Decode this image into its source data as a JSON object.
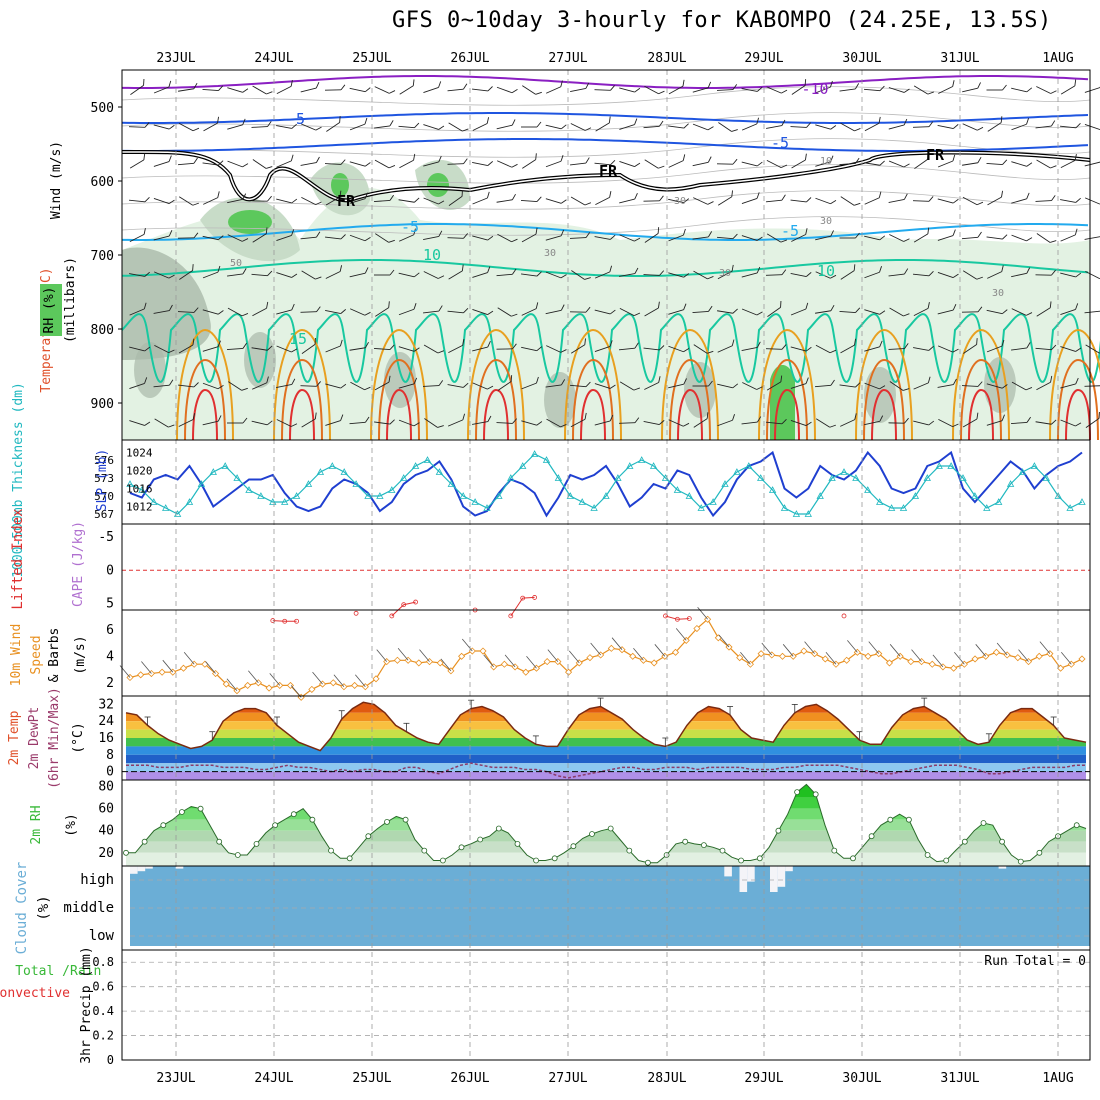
{
  "title": "GFS 0~10day 3-hourly for KABOMPO (24.25E, 13.5S)",
  "date_labels": [
    "23JUL",
    "24JUL",
    "25JUL",
    "26JUL",
    "27JUL",
    "28JUL",
    "29JUL",
    "30JUL",
    "31JUL",
    "1AUG"
  ],
  "colors": {
    "rh_green": "#5cc85c",
    "temp_purple": "#8a1fc2",
    "temp_blue": "#1f55e0",
    "temp_cyan": "#22aaee",
    "temp_teal": "#18c8a0",
    "temp_orange": "#e8a020",
    "temp_red": "#e03030",
    "slp": "#1f3fd0",
    "thickness": "#20b8c0",
    "lifted": "#e03030",
    "wind_speed": "#e89020",
    "cloud": "#6baed6",
    "rh2m": "#38b838"
  },
  "chart_data": [
    {
      "id": "upper",
      "type": "heatmap",
      "ylabels": {
        "wind": "Wind (m/s)",
        "temp": "Temperature (°C)",
        "rh": "RH (%)",
        "axis": "(millibars)"
      },
      "yticks": [
        500,
        600,
        700,
        800,
        900
      ],
      "ylim": [
        450,
        950
      ],
      "contour_labels": [
        {
          "text": "-10",
          "c": "purple"
        },
        {
          "text": "-5",
          "c": "blue"
        },
        {
          "text": "-5",
          "c": "blue"
        },
        {
          "text": "FR",
          "c": "black"
        },
        {
          "text": "FR",
          "c": "black"
        },
        {
          "text": "FR",
          "c": "black"
        },
        {
          "text": "-5",
          "c": "cyan"
        },
        {
          "text": "-5",
          "c": "cyan"
        },
        {
          "text": "10",
          "c": "teal"
        },
        {
          "text": "10",
          "c": "teal"
        },
        {
          "text": "15",
          "c": "teal"
        },
        {
          "text": "50",
          "c": "gray"
        },
        {
          "text": "30",
          "c": "gray"
        },
        {
          "text": "30",
          "c": "gray"
        },
        {
          "text": "30",
          "c": "gray"
        },
        {
          "text": "30",
          "c": "gray"
        },
        {
          "text": "10",
          "c": "gray"
        },
        {
          "text": "30",
          "c": "gray"
        }
      ]
    },
    {
      "id": "slp_thickness",
      "type": "line",
      "ylabel_left": "1000-500mb Thickness (dm)",
      "ylabel_right": "SLP (mb)",
      "left_ticks": [
        "576",
        "573",
        "570",
        "567"
      ],
      "right_ticks": [
        "1024",
        "1020",
        "1016",
        "1012"
      ],
      "series": [
        {
          "name": "SLP",
          "values": [
            1015,
            1014,
            1018,
            1019,
            1018,
            1021,
            1017,
            1012,
            1014,
            1016,
            1018,
            1018,
            1019,
            1015,
            1012,
            1011,
            1012,
            1016,
            1018,
            1017,
            1015,
            1011,
            1013,
            1017,
            1019,
            1020,
            1022,
            1018,
            1012,
            1010,
            1011,
            1015,
            1018,
            1017,
            1015,
            1010,
            1014,
            1019,
            1018,
            1019,
            1021,
            1017,
            1012,
            1014,
            1017,
            1016,
            1020,
            1019,
            1014,
            1010,
            1013,
            1018,
            1021,
            1022,
            1024,
            1016,
            1014,
            1016,
            1021,
            1019,
            1018,
            1020,
            1024,
            1021,
            1016,
            1015,
            1016,
            1021,
            1022,
            1024,
            1016,
            1013,
            1016,
            1019,
            1022,
            1020,
            1016,
            1019,
            1021,
            1022,
            1024
          ]
        },
        {
          "name": "Thickness",
          "values": [
            572,
            571,
            569,
            568,
            567,
            569,
            572,
            574,
            575,
            573,
            571,
            570,
            569,
            569,
            570,
            572,
            574,
            575,
            574,
            572,
            570,
            570,
            571,
            573,
            575,
            576,
            574,
            572,
            570,
            569,
            568,
            570,
            573,
            575,
            577,
            576,
            573,
            570,
            569,
            568,
            570,
            573,
            575,
            576,
            575,
            573,
            571,
            570,
            568,
            569,
            572,
            574,
            575,
            573,
            571,
            568,
            567,
            567,
            570,
            573,
            574,
            573,
            571,
            569,
            568,
            568,
            570,
            573,
            575,
            575,
            573,
            570,
            568,
            569,
            572,
            574,
            575,
            573,
            570,
            568,
            569
          ]
        }
      ]
    },
    {
      "id": "cape_li",
      "type": "line",
      "ylabel_left": "Lifted Index",
      "ylabel_right": "CAPE (J/kg)",
      "yticks": [
        "-5",
        "0",
        "5"
      ],
      "ylim": [
        -7,
        6
      ],
      "series": [
        {
          "name": "Lifted Index",
          "values": [
            null,
            null,
            null,
            null,
            null,
            null,
            null,
            null,
            null,
            null,
            null,
            null,
            7.6,
            7.7,
            7.7,
            null,
            null,
            null,
            null,
            6.5,
            null,
            null,
            6.9,
            5.2,
            4.8,
            null,
            null,
            null,
            null,
            6.0,
            null,
            null,
            6.9,
            4.2,
            4.1,
            null,
            null,
            null,
            null,
            null,
            null,
            null,
            null,
            null,
            null,
            6.9,
            7.4,
            7.3,
            null,
            null,
            null,
            null,
            null,
            null,
            null,
            null,
            null,
            null,
            null,
            null,
            6.9,
            null,
            null,
            null,
            null,
            null,
            null,
            null,
            null,
            null,
            null,
            null,
            null,
            null,
            null,
            null,
            null,
            null,
            null,
            null,
            null
          ]
        }
      ]
    },
    {
      "id": "wind10m",
      "type": "line",
      "ylabel": "10m Wind Speed & Barbs (m/s)",
      "yticks": [
        "6",
        "4",
        "2"
      ],
      "ylim": [
        1,
        7.5
      ],
      "series": [
        {
          "name": "10m Wind Speed",
          "values": [
            2.4,
            2.6,
            2.7,
            2.8,
            2.8,
            3.1,
            3.4,
            3.4,
            2.7,
            1.9,
            1.4,
            1.8,
            2.0,
            1.6,
            1.8,
            1.8,
            0.9,
            1.5,
            1.9,
            2.0,
            1.7,
            1.8,
            1.7,
            2.3,
            3.6,
            3.7,
            3.7,
            3.5,
            3.6,
            3.5,
            2.9,
            4.0,
            4.4,
            4.4,
            3.2,
            3.4,
            3.2,
            2.8,
            3.1,
            3.6,
            3.6,
            2.8,
            3.5,
            3.9,
            4.1,
            4.6,
            4.5,
            4.0,
            3.7,
            3.5,
            4.0,
            4.3,
            5.2,
            6.1,
            6.8,
            5.4,
            4.7,
            3.9,
            3.4,
            4.2,
            4.1,
            4.0,
            4.0,
            4.4,
            4.2,
            3.8,
            3.4,
            3.7,
            4.3,
            4.0,
            4.2,
            3.5,
            4.0,
            3.6,
            3.6,
            3.4,
            3.2,
            3.1,
            3.4,
            3.8,
            4.0,
            4.3,
            4.1,
            3.9,
            3.6,
            4.0,
            4.2,
            3.1,
            3.4,
            3.8
          ]
        }
      ]
    },
    {
      "id": "temp2m",
      "type": "area",
      "ylabel": "2m Temp 2m DewPt (6hr Min/Max) (°C)",
      "yticks": [
        "32",
        "24",
        "16",
        "8",
        "0"
      ],
      "ylim": [
        -4,
        36
      ],
      "series": [
        {
          "name": "2m Temp",
          "values": [
            28,
            27,
            22,
            18,
            15,
            13,
            11,
            12,
            15,
            24,
            28,
            30,
            30,
            28,
            22,
            18,
            14,
            12,
            10,
            16,
            25,
            30,
            33,
            32,
            28,
            22,
            19,
            16,
            14,
            13,
            20,
            27,
            30,
            31,
            29,
            26,
            20,
            16,
            13,
            12,
            12,
            20,
            27,
            30,
            31,
            28,
            25,
            20,
            16,
            13,
            12,
            14,
            22,
            28,
            31,
            30,
            27,
            20,
            16,
            15,
            14,
            22,
            28,
            31,
            32,
            29,
            25,
            20,
            15,
            13,
            13,
            21,
            27,
            30,
            31,
            28,
            25,
            20,
            15,
            13,
            14,
            22,
            28,
            30,
            30,
            26,
            22,
            16,
            15,
            14
          ]
        },
        {
          "name": "2m DewPt",
          "values": [
            3,
            3,
            3,
            2,
            2,
            2,
            3,
            3,
            3,
            2,
            2,
            2,
            1,
            1,
            2,
            3,
            2,
            2,
            1,
            0,
            1,
            0,
            1,
            1,
            0,
            0,
            2,
            2,
            0,
            -1,
            1,
            3,
            4,
            3,
            2,
            2,
            2,
            1,
            1,
            0,
            -2,
            -3,
            -2,
            -1,
            0,
            1,
            2,
            2,
            1,
            1,
            2,
            2,
            2,
            1,
            2,
            2,
            2,
            2,
            1,
            1,
            1,
            2,
            2,
            3,
            3,
            3,
            3,
            2,
            1,
            0,
            -1,
            -1,
            0,
            1,
            2,
            3,
            3,
            3,
            2,
            1,
            -1,
            -1,
            0,
            1,
            2,
            2,
            2,
            2,
            3,
            3
          ]
        }
      ]
    },
    {
      "id": "rh2m",
      "type": "area",
      "ylabel": "2m RH (%)",
      "yticks": [
        "80",
        "60",
        "40",
        "20"
      ],
      "ylim": [
        8,
        86
      ],
      "series": [
        {
          "name": "2m RH",
          "values": [
            20,
            20,
            30,
            40,
            45,
            50,
            57,
            62,
            60,
            45,
            30,
            20,
            18,
            18,
            28,
            38,
            45,
            50,
            55,
            60,
            50,
            35,
            22,
            15,
            15,
            25,
            35,
            42,
            48,
            53,
            50,
            32,
            22,
            13,
            13,
            18,
            25,
            28,
            32,
            35,
            42,
            38,
            28,
            18,
            13,
            13,
            15,
            20,
            26,
            33,
            37,
            40,
            42,
            32,
            22,
            13,
            11,
            11,
            18,
            28,
            30,
            28,
            27,
            25,
            22,
            16,
            13,
            13,
            15,
            25,
            40,
            55,
            75,
            82,
            73,
            45,
            22,
            15,
            15,
            25,
            35,
            45,
            50,
            55,
            50,
            32,
            18,
            12,
            13,
            22,
            30,
            40,
            47,
            45,
            30,
            18,
            12,
            13,
            20,
            30,
            35,
            40,
            45,
            42
          ]
        }
      ]
    },
    {
      "id": "cloud",
      "type": "bar",
      "ylabel": "Cloud Cover (%)",
      "yticks": [
        "high",
        "middle",
        "low"
      ],
      "series": [
        {
          "name": "high",
          "values": [
            30,
            20,
            10,
            0,
            0,
            0,
            10,
            0,
            0,
            0,
            0,
            0,
            0,
            0,
            0,
            0,
            0,
            0,
            0,
            0,
            0,
            0,
            0,
            0,
            0,
            0,
            0,
            0,
            0,
            0,
            0,
            0,
            0,
            0,
            0,
            0,
            0,
            0,
            0,
            0,
            0,
            0,
            0,
            0,
            0,
            0,
            0,
            0,
            0,
            0,
            0,
            0,
            0,
            0,
            0,
            0,
            0,
            0,
            0,
            0,
            0,
            0,
            0,
            0,
            0,
            0,
            0,
            0,
            0,
            0,
            0,
            0,
            0,
            0,
            0,
            0,
            0,
            0,
            40,
            0,
            100,
            60,
            0,
            0,
            100,
            80,
            20,
            0,
            0,
            0,
            0,
            0,
            0,
            0,
            0,
            0,
            0,
            0,
            0,
            0,
            0,
            0,
            0,
            0,
            0,
            0,
            0,
            0,
            0,
            0,
            0,
            0,
            0,
            0,
            10,
            0,
            0,
            0,
            0,
            0,
            0,
            0,
            0,
            0,
            0,
            0
          ]
        }
      ]
    },
    {
      "id": "precip",
      "type": "bar",
      "ylabel": "Total / Rain Convective 3hr Precip (mm)",
      "ylabel_parts": {
        "total": "Total",
        "rain": "Rain",
        "convective": "Convective",
        "axis": "3hr Precip (mm)"
      },
      "yticks": [
        "0.8",
        "0.6",
        "0.4",
        "0.2",
        "0"
      ],
      "ylim": [
        0,
        0.9
      ],
      "run_total": "Run Total = 0",
      "series": [
        {
          "name": "3hr Precip",
          "values": []
        }
      ]
    }
  ]
}
